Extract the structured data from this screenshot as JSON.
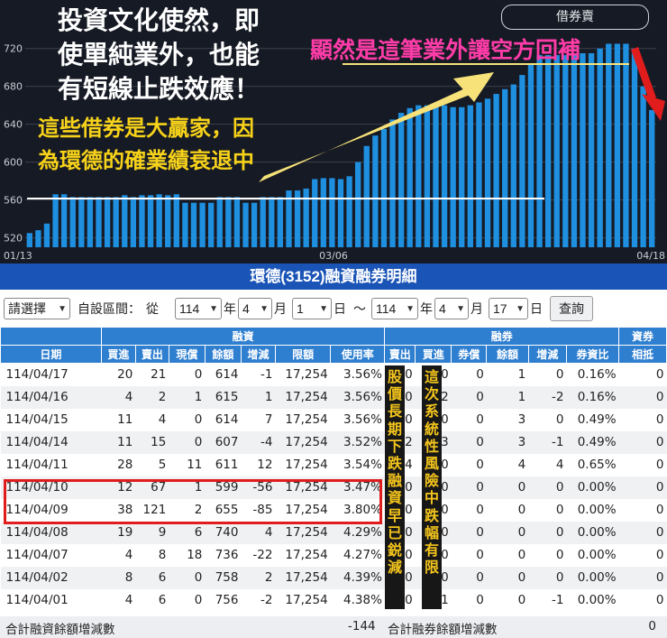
{
  "chart": {
    "caption_main": "投資文化使然，即\n使單純業外，也能\n有短線止跌效應！",
    "caption_yellow": "這些借券是大贏家，因\n為環德的確業績衰退中",
    "caption_pink": "顯然是這筆業外讓空方回補",
    "sell_button": "借券賣",
    "colors": {
      "bar": "#1f8fe0",
      "background": "#161a24",
      "arrow": "#f7e27a",
      "pink": "#ff3ca8",
      "red_arrow": "#e01c1c"
    }
  },
  "chart_data": {
    "type": "bar",
    "x_tick_labels": [
      "01/13",
      "03/06",
      "04/18"
    ],
    "y_ticks": [
      520,
      560,
      600,
      640,
      680,
      720
    ],
    "ylim": [
      510,
      735
    ],
    "values": [
      525,
      528,
      535,
      566,
      566,
      563,
      563,
      563,
      563,
      563,
      563,
      565,
      563,
      565,
      565,
      566,
      565,
      566,
      557,
      557,
      557,
      557,
      563,
      563,
      563,
      557,
      557,
      563,
      563,
      563,
      570,
      570,
      572,
      582,
      583,
      583,
      582,
      585,
      600,
      617,
      628,
      635,
      645,
      652,
      657,
      660,
      660,
      660,
      660,
      658,
      658,
      660,
      663,
      667,
      672,
      677,
      682,
      692,
      703,
      713,
      713,
      713,
      713,
      713,
      715,
      715,
      720,
      725,
      725,
      725,
      720,
      680,
      655
    ]
  },
  "title": "環德(3152)融資融券明細",
  "filter": {
    "select_label": "請選擇",
    "custom_label": "自設區間：",
    "from_label": "從",
    "start": {
      "year": "114",
      "month": "4",
      "day": "1"
    },
    "end": {
      "year": "114",
      "month": "4",
      "day": "17"
    },
    "year_unit": "年",
    "month_unit": "月",
    "day_unit": "日",
    "to_label": "～",
    "query_button": "查詢"
  },
  "table": {
    "group_headers": {
      "margin": "融資",
      "short": "融券",
      "ratio": "資券"
    },
    "columns": [
      "日期",
      "買進",
      "賣出",
      "現償",
      "餘額",
      "增減",
      "限額",
      "使用率",
      "賣出",
      "買進",
      "券償",
      "餘額",
      "增減",
      "券資比",
      "相抵"
    ],
    "rows": [
      [
        "114/04/17",
        "20",
        "21",
        "0",
        "614",
        "-1",
        "17,254",
        "3.56%",
        "0",
        "0",
        "0",
        "1",
        "0",
        "0.16%",
        "0"
      ],
      [
        "114/04/16",
        "4",
        "2",
        "1",
        "615",
        "1",
        "17,254",
        "3.56%",
        "0",
        "2",
        "0",
        "1",
        "-2",
        "0.16%",
        "0"
      ],
      [
        "114/04/15",
        "11",
        "4",
        "0",
        "614",
        "7",
        "17,254",
        "3.56%",
        "0",
        "0",
        "0",
        "3",
        "0",
        "0.49%",
        "0"
      ],
      [
        "114/04/14",
        "11",
        "15",
        "0",
        "607",
        "-4",
        "17,254",
        "3.52%",
        "2",
        "3",
        "0",
        "3",
        "-1",
        "0.49%",
        "0"
      ],
      [
        "114/04/11",
        "28",
        "5",
        "11",
        "611",
        "12",
        "17,254",
        "3.54%",
        "4",
        "0",
        "0",
        "4",
        "4",
        "0.65%",
        "0"
      ],
      [
        "114/04/10",
        "12",
        "67",
        "1",
        "599",
        "-56",
        "17,254",
        "3.47%",
        "0",
        "0",
        "0",
        "0",
        "0",
        "0.00%",
        "0"
      ],
      [
        "114/04/09",
        "38",
        "121",
        "2",
        "655",
        "-85",
        "17,254",
        "3.80%",
        "0",
        "0",
        "0",
        "0",
        "0",
        "0.00%",
        "0"
      ],
      [
        "114/04/08",
        "19",
        "9",
        "6",
        "740",
        "4",
        "17,254",
        "4.29%",
        "0",
        "0",
        "0",
        "0",
        "0",
        "0.00%",
        "0"
      ],
      [
        "114/04/07",
        "4",
        "8",
        "18",
        "736",
        "-22",
        "17,254",
        "4.27%",
        "0",
        "0",
        "0",
        "0",
        "0",
        "0.00%",
        "0"
      ],
      [
        "114/04/02",
        "8",
        "6",
        "0",
        "758",
        "2",
        "17,254",
        "4.39%",
        "0",
        "0",
        "0",
        "0",
        "0",
        "0.00%",
        "0"
      ],
      [
        "114/04/01",
        "4",
        "6",
        "0",
        "756",
        "-2",
        "17,254",
        "4.38%",
        "0",
        "1",
        "0",
        "0",
        "-1",
        "0.00%",
        "0"
      ]
    ],
    "summary": {
      "margin_label": "合計融資餘額增減數",
      "margin_value": "-144",
      "short_label": "合計融券餘額增減數",
      "short_value": "0"
    }
  },
  "annotations": {
    "left_vertical": "股價長期下跌融資早已鋭減",
    "right_vertical": "這次系統性風險中跌幅有限"
  }
}
